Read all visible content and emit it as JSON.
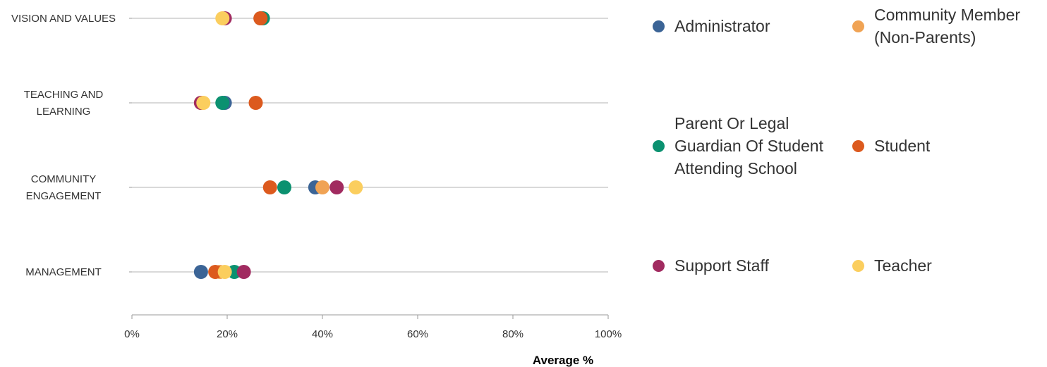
{
  "chart_data": {
    "type": "scatter",
    "orientation": "horizontal-dot-plot",
    "categories": [
      "VISION AND VALUES",
      "TEACHING AND LEARNING",
      "COMMUNITY ENGAGEMENT",
      "MANAGEMENT"
    ],
    "category_lines": [
      [
        "VISION AND VALUES"
      ],
      [
        "TEACHING AND",
        "LEARNING"
      ],
      [
        "COMMUNITY",
        "ENGAGEMENT"
      ],
      [
        "MANAGEMENT"
      ]
    ],
    "xlabel": "Average %",
    "xlim": [
      0,
      100
    ],
    "xticks": [
      0,
      20,
      40,
      60,
      80,
      100
    ],
    "xtick_labels": [
      "0%",
      "20%",
      "40%",
      "60%",
      "80%",
      "100%"
    ],
    "grid": "horizontal category lines",
    "legend_position": "right",
    "series": [
      {
        "name": "Administrator",
        "color": "#3b6496",
        "values": [
          27,
          19.5,
          38.5,
          14.5
        ]
      },
      {
        "name": "Community Member (Non-Parents)",
        "color": "#f0a354",
        "values": [
          27,
          14.5,
          40,
          18.5
        ]
      },
      {
        "name": "Parent Or Legal Guardian Of Student Attending School",
        "color": "#0b9170",
        "values": [
          27.5,
          19,
          32,
          21.5
        ]
      },
      {
        "name": "Student",
        "color": "#dc5a1e",
        "values": [
          27,
          26,
          29,
          17.5
        ]
      },
      {
        "name": "Support Staff",
        "color": "#a12b60",
        "values": [
          19.5,
          14.5,
          43,
          23.5
        ]
      },
      {
        "name": "Teacher",
        "color": "#fbce5e",
        "values": [
          19,
          15,
          47,
          19.5
        ]
      }
    ]
  },
  "legend": {
    "items": [
      {
        "lines": [
          "Administrator"
        ],
        "color": "#3b6496"
      },
      {
        "lines": [
          "Community Member",
          "(Non-Parents)"
        ],
        "color": "#f0a354"
      },
      {
        "lines": [
          "Parent Or Legal",
          "Guardian Of Student",
          "Attending School"
        ],
        "color": "#0b9170"
      },
      {
        "lines": [
          "Student"
        ],
        "color": "#dc5a1e"
      },
      {
        "lines": [
          "Support Staff"
        ],
        "color": "#a12b60"
      },
      {
        "lines": [
          "Teacher"
        ],
        "color": "#fbce5e"
      }
    ]
  }
}
